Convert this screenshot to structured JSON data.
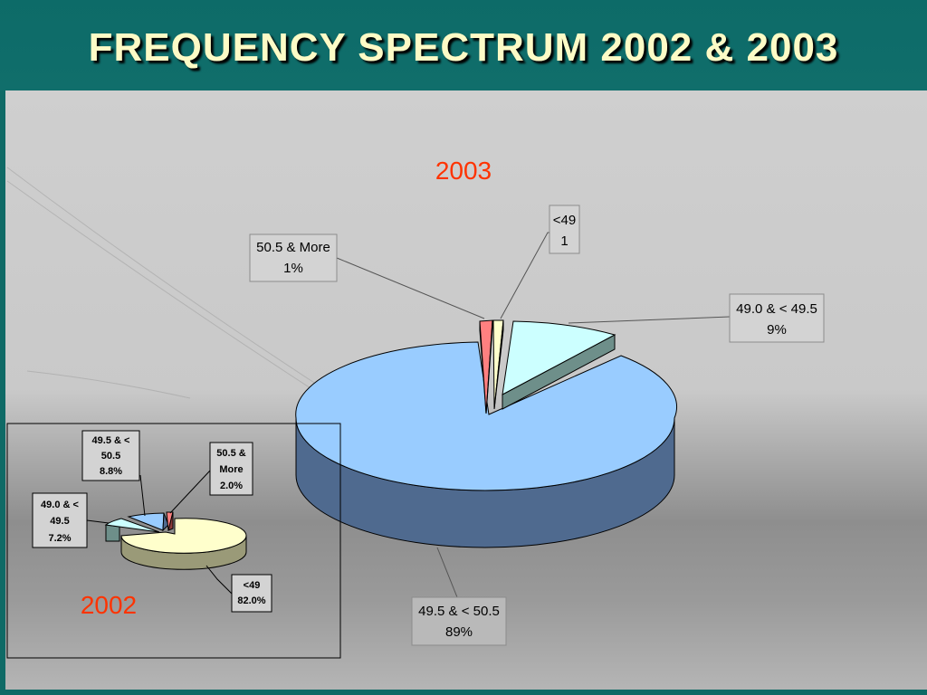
{
  "slide": {
    "title": "FREQUENCY SPECTRUM 2002 & 2003"
  },
  "chart_data": [
    {
      "type": "pie",
      "title": "2003",
      "slices": [
        {
          "category": "49.5 & < 50.5",
          "label_value": "89%",
          "value": 89,
          "color": "#99ccff"
        },
        {
          "category": "49.0 & < 49.5",
          "label_value": "9%",
          "value": 9,
          "color": "#ccffff"
        },
        {
          "category": "<49",
          "label_value": "1",
          "value": 1,
          "color": "#ffffcc"
        },
        {
          "category": "50.5 & More",
          "label_value": "1%",
          "value": 1,
          "color": "#ff8080"
        }
      ]
    },
    {
      "type": "pie",
      "title": "2002",
      "slices": [
        {
          "category": "<49",
          "label_value": "82.0%",
          "value": 82.0,
          "color": "#ffffcc"
        },
        {
          "category": "49.0 & <\n49.5",
          "label_value": "7.2%",
          "value": 7.2,
          "color": "#ccffff"
        },
        {
          "category": "49.5 & <\n50.5",
          "label_value": "8.8%",
          "value": 8.8,
          "color": "#99ccff"
        },
        {
          "category": "50.5 &\nMore",
          "label_value": "2.0%",
          "value": 2.0,
          "color": "#ff8080"
        }
      ]
    }
  ],
  "labels": {
    "y2003": "2003",
    "y2002": "2002",
    "l2003_a_1": "<49",
    "l2003_a_2": "1",
    "l2003_b_1": "50.5 & More",
    "l2003_b_2": "1%",
    "l2003_c_1": "49.0 & < 49.5",
    "l2003_c_2": "9%",
    "l2003_d_1": "49.5 & < 50.5",
    "l2003_d_2": "89%",
    "l2002_a_1": "49.5 & <",
    "l2002_a_2": "50.5",
    "l2002_a_3": "8.8%",
    "l2002_b_1": "50.5 &",
    "l2002_b_2": "More",
    "l2002_b_3": "2.0%",
    "l2002_c_1": "49.0 & <",
    "l2002_c_2": "49.5",
    "l2002_c_3": "7.2%",
    "l2002_d_1": "<49",
    "l2002_d_2": "82.0%"
  },
  "colors": {
    "title_text": "#fdfbc6",
    "title_bg": "#0f6a66",
    "year_text": "#ff3300"
  }
}
